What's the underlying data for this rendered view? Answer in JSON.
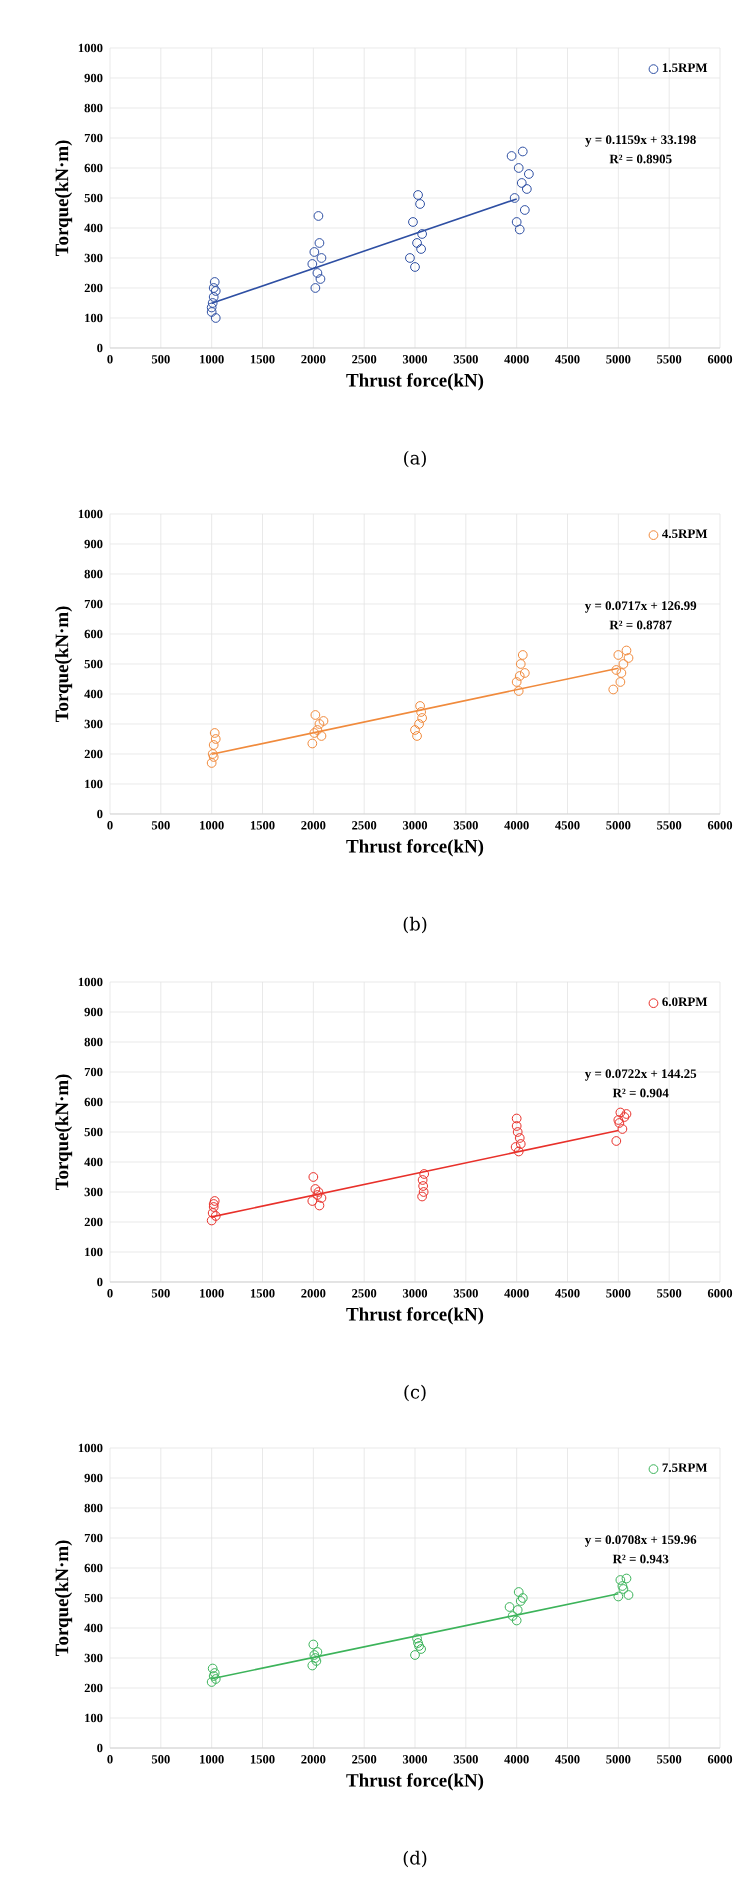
{
  "chart_data": [
    {
      "type": "scatter",
      "xlabel": "Thrust force(kN)",
      "ylabel": "Torque(kN·m)",
      "xlim": [
        0,
        6000
      ],
      "ylim": [
        0,
        1000
      ],
      "xticks": [
        0,
        500,
        1000,
        1500,
        2000,
        2500,
        3000,
        3500,
        4000,
        4500,
        5000,
        5500,
        6000
      ],
      "yticks": [
        0,
        100,
        200,
        300,
        400,
        500,
        600,
        700,
        800,
        900,
        1000
      ],
      "grid": true,
      "legend": "top right",
      "annotations": [
        "y = 0.1159x + 33.198",
        "R² = 0.8905",
        "(a)"
      ],
      "series": [
        {
          "name": "1.5RPM",
          "marker": "circle",
          "color": "#2e4fa3",
          "x": [
            1000,
            1010,
            1020,
            1030,
            1040,
            1020,
            1000,
            1040,
            1990,
            2020,
            2040,
            2060,
            2080,
            2050,
            2010,
            2070,
            2950,
            2980,
            3000,
            3020,
            3050,
            3070,
            3030,
            3060,
            3950,
            3980,
            4000,
            4020,
            4050,
            4080,
            4100,
            4120,
            4030,
            4060
          ],
          "values": [
            120,
            150,
            200,
            220,
            100,
            170,
            135,
            190,
            280,
            200,
            250,
            350,
            300,
            440,
            320,
            230,
            300,
            420,
            270,
            350,
            480,
            380,
            510,
            330,
            640,
            500,
            420,
            600,
            550,
            460,
            530,
            580,
            395,
            655
          ]
        },
        {
          "type": "line",
          "marker": "none",
          "color": "#2e4fa3",
          "x": [
            1000,
            4000
          ],
          "values": [
            149,
            497
          ]
        }
      ]
    },
    {
      "type": "scatter",
      "xlabel": "Thrust force(kN)",
      "ylabel": "Torque(kN·m)",
      "xlim": [
        0,
        6000
      ],
      "ylim": [
        0,
        1000
      ],
      "xticks": [
        0,
        500,
        1000,
        1500,
        2000,
        2500,
        3000,
        3500,
        4000,
        4500,
        5000,
        5500,
        6000
      ],
      "yticks": [
        0,
        100,
        200,
        300,
        400,
        500,
        600,
        700,
        800,
        900,
        1000
      ],
      "grid": true,
      "legend": "top right",
      "annotations": [
        "y = 0.0717x + 126.99",
        "R² = 0.8787",
        "(b)"
      ],
      "series": [
        {
          "name": "4.5RPM",
          "marker": "circle",
          "color": "#f08a3c",
          "x": [
            1000,
            1010,
            1020,
            1030,
            1040,
            1020,
            1990,
            2020,
            2040,
            2060,
            2080,
            2100,
            2010,
            3000,
            3020,
            3050,
            3070,
            3040,
            3060,
            4000,
            4020,
            4040,
            4060,
            4080,
            4030,
            4950,
            4980,
            5000,
            5020,
            5050,
            5080,
            5100,
            5030
          ],
          "values": [
            170,
            200,
            230,
            270,
            250,
            190,
            235,
            330,
            280,
            300,
            260,
            310,
            270,
            280,
            260,
            360,
            320,
            300,
            340,
            440,
            410,
            500,
            530,
            470,
            460,
            415,
            480,
            530,
            440,
            500,
            545,
            520,
            470
          ]
        },
        {
          "type": "line",
          "marker": "none",
          "color": "#f08a3c",
          "x": [
            1000,
            5000
          ],
          "values": [
            199,
            486
          ]
        }
      ]
    },
    {
      "type": "scatter",
      "xlabel": "Thrust force(kN)",
      "ylabel": "Torque(kN·m)",
      "xlim": [
        0,
        6000
      ],
      "ylim": [
        0,
        1000
      ],
      "xticks": [
        0,
        500,
        1000,
        1500,
        2000,
        2500,
        3000,
        3500,
        4000,
        4500,
        5000,
        5500,
        6000
      ],
      "yticks": [
        0,
        100,
        200,
        300,
        400,
        500,
        600,
        700,
        800,
        900,
        1000
      ],
      "grid": true,
      "legend": "top right",
      "annotations": [
        "y = 0.0722x + 144.25",
        "R² = 0.904",
        "(c)"
      ],
      "series": [
        {
          "name": "6.0RPM",
          "marker": "circle",
          "color": "#e8302a",
          "x": [
            1000,
            1010,
            1020,
            1030,
            1040,
            1020,
            1990,
            2000,
            2020,
            2040,
            2060,
            2080,
            2050,
            3070,
            3080,
            3090,
            3075,
            3085,
            3990,
            4000,
            4010,
            4020,
            4030,
            4040,
            4000,
            4980,
            5000,
            5020,
            5040,
            5060,
            5080,
            5010
          ],
          "values": [
            205,
            230,
            250,
            270,
            220,
            260,
            270,
            350,
            310,
            290,
            255,
            280,
            300,
            285,
            320,
            360,
            340,
            300,
            450,
            545,
            500,
            435,
            480,
            460,
            520,
            470,
            540,
            565,
            510,
            550,
            560,
            530
          ]
        },
        {
          "type": "line",
          "marker": "none",
          "color": "#e8302a",
          "x": [
            1000,
            5000
          ],
          "values": [
            217,
            505
          ]
        }
      ]
    },
    {
      "type": "scatter",
      "xlabel": "Thrust force(kN)",
      "ylabel": "Torque(kN·m)",
      "xlim": [
        0,
        6000
      ],
      "ylim": [
        0,
        1000
      ],
      "xticks": [
        0,
        500,
        1000,
        1500,
        2000,
        2500,
        3000,
        3500,
        4000,
        4500,
        5000,
        5500,
        6000
      ],
      "yticks": [
        0,
        100,
        200,
        300,
        400,
        500,
        600,
        700,
        800,
        900,
        1000
      ],
      "grid": true,
      "legend": "top right",
      "annotations": [
        "y = 0.0708x + 159.96",
        "R² = 0.943",
        "(d)"
      ],
      "series": [
        {
          "name": "7.5RPM",
          "marker": "circle",
          "color": "#3cb35a",
          "x": [
            1000,
            1010,
            1020,
            1030,
            1040,
            1990,
            2000,
            2020,
            2040,
            2030,
            2010,
            3000,
            3020,
            3040,
            3060,
            3030,
            3930,
            3960,
            4000,
            4020,
            4040,
            4060,
            4010,
            5000,
            5020,
            5050,
            5080,
            5100,
            5040
          ],
          "values": [
            220,
            265,
            240,
            250,
            230,
            275,
            345,
            300,
            320,
            290,
            310,
            310,
            365,
            340,
            330,
            350,
            470,
            440,
            425,
            520,
            490,
            500,
            460,
            505,
            560,
            530,
            565,
            510,
            540
          ]
        },
        {
          "type": "line",
          "marker": "none",
          "color": "#3cb35a",
          "x": [
            1000,
            5000
          ],
          "values": [
            231,
            514
          ]
        }
      ]
    }
  ]
}
